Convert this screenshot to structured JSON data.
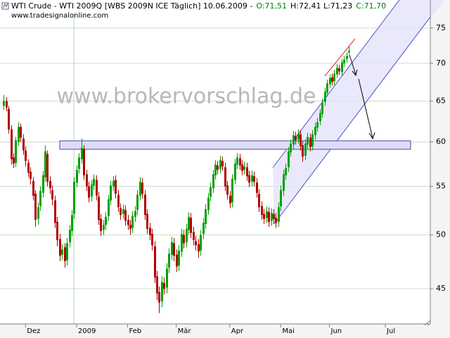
{
  "chart_data": {
    "type": "candlestick",
    "title": "WTI Crude - WTI 2009Q [WBS 2009N ICE  Täglich] 10.06.2009 -",
    "ohlc_labels": [
      "O:71,51",
      "H:72,41 L:71,23",
      "C:71,70"
    ],
    "subtitle": "www.tradesignalonline.com",
    "watermark": "www.brokervorschlag.de",
    "log_scale": true,
    "grid": true,
    "up_color": "#00a000",
    "down_color": "#b00000",
    "ylim": [
      42,
      77.3
    ],
    "yticks": [
      45,
      50,
      55,
      60,
      65,
      70,
      75
    ],
    "xlim": [
      -1.5,
      175.5
    ],
    "xticks": [
      {
        "value": 9,
        "label": "Dez"
      },
      {
        "value": 30,
        "label": "2009"
      },
      {
        "value": 51,
        "label": "Feb"
      },
      {
        "value": 71,
        "label": "Mär"
      },
      {
        "value": 93,
        "label": "Apr"
      },
      {
        "value": 114,
        "label": "Mai"
      },
      {
        "value": 134,
        "label": "Jun"
      },
      {
        "value": 157,
        "label": "Jul"
      }
    ],
    "open": [
      64.4,
      65.0,
      64.0,
      61.5,
      58.2,
      57.6,
      60.0,
      61.8,
      60.4,
      59.0,
      57.6,
      56.6,
      55.6,
      54.2,
      51.6,
      52.9,
      54.3,
      56.0,
      58.6,
      55.6,
      54.6,
      53.5,
      51.3,
      49.6,
      48.1,
      48.8,
      47.6,
      49.3,
      50.4,
      52.1,
      55.4,
      56.9,
      58.0,
      59.2,
      56.3,
      55.0,
      53.9,
      55.1,
      55.7,
      53.9,
      51.6,
      50.5,
      51.0,
      51.9,
      53.5,
      55.0,
      55.7,
      54.1,
      52.7,
      52.1,
      52.5,
      51.5,
      51.0,
      50.7,
      51.8,
      52.5,
      54.0,
      55.4,
      54.1,
      52.1,
      50.7,
      50.1,
      48.9,
      46.1,
      44.7,
      43.9,
      45.5,
      45.1,
      46.9,
      48.1,
      49.2,
      48.1,
      47.1,
      48.4,
      50.0,
      49.3,
      50.5,
      51.7,
      50.3,
      49.4,
      49.1,
      48.5,
      50.1,
      51.1,
      52.5,
      53.9,
      54.8,
      56.2,
      57.3,
      56.9,
      57.8,
      57.1,
      55.1,
      54.0,
      53.3,
      55.7,
      57.4,
      58.1,
      57.4,
      56.8,
      57.1,
      56.2,
      55.5,
      56.1,
      55.4,
      54.2,
      52.9,
      52.1,
      51.7,
      52.3,
      51.4,
      52.1,
      51.7,
      51.3,
      52.9,
      54.5,
      56.2,
      57.1,
      58.8,
      59.7,
      60.7,
      60.3,
      60.9,
      59.6,
      58.4,
      59.7,
      60.5,
      59.5,
      60.8,
      61.7,
      62.5,
      63.4,
      64.9,
      66.1,
      67.2,
      68.1,
      67.6,
      68.5,
      69.3,
      68.8,
      70.0,
      70.6,
      71.51
    ],
    "high": [
      65.8,
      65.5,
      64.4,
      62.0,
      58.7,
      60.6,
      62.4,
      62.2,
      60.9,
      59.5,
      58.0,
      57.1,
      56.0,
      54.6,
      53.3,
      55.0,
      56.7,
      59.6,
      59.0,
      56.1,
      55.1,
      54.0,
      51.8,
      50.1,
      49.1,
      49.2,
      49.7,
      51.0,
      52.5,
      56.0,
      57.3,
      58.7,
      60.4,
      59.6,
      56.8,
      55.5,
      55.7,
      56.3,
      56.2,
      54.4,
      52.1,
      51.5,
      52.3,
      54.1,
      55.6,
      56.1,
      56.2,
      54.6,
      53.2,
      53.1,
      53.0,
      52.0,
      51.5,
      52.4,
      52.9,
      54.6,
      56.0,
      55.9,
      54.6,
      52.6,
      51.2,
      50.6,
      49.4,
      46.6,
      45.2,
      46.1,
      46.0,
      47.3,
      48.7,
      49.8,
      49.7,
      48.6,
      49.0,
      50.6,
      50.5,
      51.1,
      52.3,
      52.2,
      50.8,
      49.9,
      49.6,
      50.5,
      51.7,
      53.1,
      54.3,
      55.4,
      56.8,
      57.9,
      57.8,
      58.4,
      58.3,
      57.6,
      55.6,
      54.5,
      56.3,
      58.0,
      58.7,
      58.6,
      57.9,
      57.7,
      57.6,
      56.7,
      56.7,
      56.6,
      55.9,
      54.7,
      53.4,
      52.6,
      52.9,
      52.8,
      52.7,
      52.6,
      52.2,
      53.3,
      55.1,
      56.8,
      57.5,
      59.4,
      60.3,
      61.3,
      61.2,
      61.5,
      61.4,
      60.1,
      60.3,
      61.1,
      61.0,
      61.4,
      62.3,
      62.9,
      64.0,
      65.3,
      66.7,
      67.8,
      68.5,
      68.6,
      69.1,
      69.9,
      69.8,
      70.6,
      71.0,
      71.5,
      72.41
    ],
    "low": [
      63.9,
      63.7,
      61.0,
      57.4,
      57.0,
      57.1,
      59.5,
      60.0,
      58.5,
      57.2,
      56.0,
      55.2,
      53.5,
      50.8,
      51.0,
      52.4,
      53.8,
      55.5,
      55.0,
      54.2,
      53.0,
      50.7,
      48.9,
      47.5,
      47.6,
      46.9,
      47.1,
      48.8,
      49.9,
      51.6,
      54.9,
      56.4,
      57.5,
      55.7,
      54.5,
      53.3,
      53.4,
      54.6,
      53.5,
      51.0,
      49.9,
      50.0,
      50.5,
      51.4,
      53.0,
      54.5,
      53.7,
      52.3,
      51.5,
      51.6,
      50.9,
      50.5,
      50.0,
      50.2,
      51.3,
      52.0,
      53.5,
      53.7,
      51.5,
      50.1,
      49.5,
      48.5,
      45.5,
      44.0,
      42.9,
      43.4,
      44.5,
      44.6,
      46.4,
      47.6,
      47.5,
      46.5,
      46.6,
      47.9,
      48.7,
      48.8,
      50.0,
      49.7,
      49.0,
      48.5,
      47.8,
      48.0,
      49.6,
      50.6,
      52.0,
      53.4,
      54.3,
      55.7,
      56.3,
      56.4,
      56.7,
      54.5,
      53.6,
      52.7,
      52.8,
      55.2,
      56.9,
      56.8,
      56.2,
      56.3,
      55.6,
      54.9,
      55.0,
      55.0,
      53.8,
      52.3,
      51.5,
      51.1,
      51.2,
      50.8,
      50.9,
      51.1,
      50.7,
      50.8,
      52.4,
      54.0,
      55.7,
      56.6,
      58.3,
      59.2,
      59.7,
      59.8,
      59.0,
      57.7,
      57.9,
      59.2,
      58.9,
      59.0,
      60.3,
      61.2,
      62.0,
      62.9,
      64.4,
      65.6,
      66.7,
      67.0,
      67.1,
      68.0,
      68.4,
      68.3,
      69.5,
      70.1,
      71.23
    ],
    "close": [
      65.0,
      64.2,
      61.5,
      58.0,
      57.5,
      60.2,
      61.8,
      60.5,
      59.0,
      57.8,
      56.5,
      55.8,
      54.0,
      51.5,
      52.8,
      54.5,
      56.2,
      58.9,
      55.5,
      54.8,
      53.6,
      51.2,
      49.5,
      48.0,
      48.6,
      47.5,
      49.2,
      50.5,
      52.0,
      55.5,
      56.8,
      58.2,
      59.3,
      56.2,
      55.0,
      53.8,
      55.2,
      55.8,
      54.0,
      51.5,
      50.4,
      51.0,
      51.8,
      53.6,
      55.1,
      55.6,
      54.2,
      52.8,
      52.0,
      52.6,
      51.4,
      51.0,
      50.6,
      51.9,
      52.4,
      54.1,
      55.5,
      54.2,
      52.0,
      50.6,
      50.0,
      49.0,
      46.0,
      44.6,
      43.8,
      45.6,
      45.0,
      46.8,
      48.2,
      49.3,
      48.0,
      47.0,
      48.5,
      50.1,
      49.2,
      50.6,
      51.8,
      50.2,
      49.5,
      49.0,
      48.4,
      50.0,
      51.2,
      52.6,
      53.8,
      54.9,
      56.3,
      57.4,
      56.8,
      57.9,
      57.2,
      55.0,
      54.1,
      53.2,
      55.8,
      57.5,
      58.2,
      57.3,
      56.7,
      57.2,
      56.1,
      55.4,
      56.2,
      55.5,
      54.3,
      52.8,
      52.0,
      51.6,
      52.4,
      51.3,
      52.2,
      51.6,
      51.2,
      52.8,
      54.6,
      56.3,
      57.0,
      58.9,
      59.8,
      60.8,
      60.2,
      61.0,
      59.5,
      58.3,
      59.8,
      60.6,
      59.4,
      60.9,
      61.8,
      62.4,
      63.5,
      64.8,
      66.2,
      67.3,
      68.0,
      67.5,
      68.6,
      69.4,
      68.9,
      70.1,
      70.5,
      71.0,
      71.7
    ]
  }
}
